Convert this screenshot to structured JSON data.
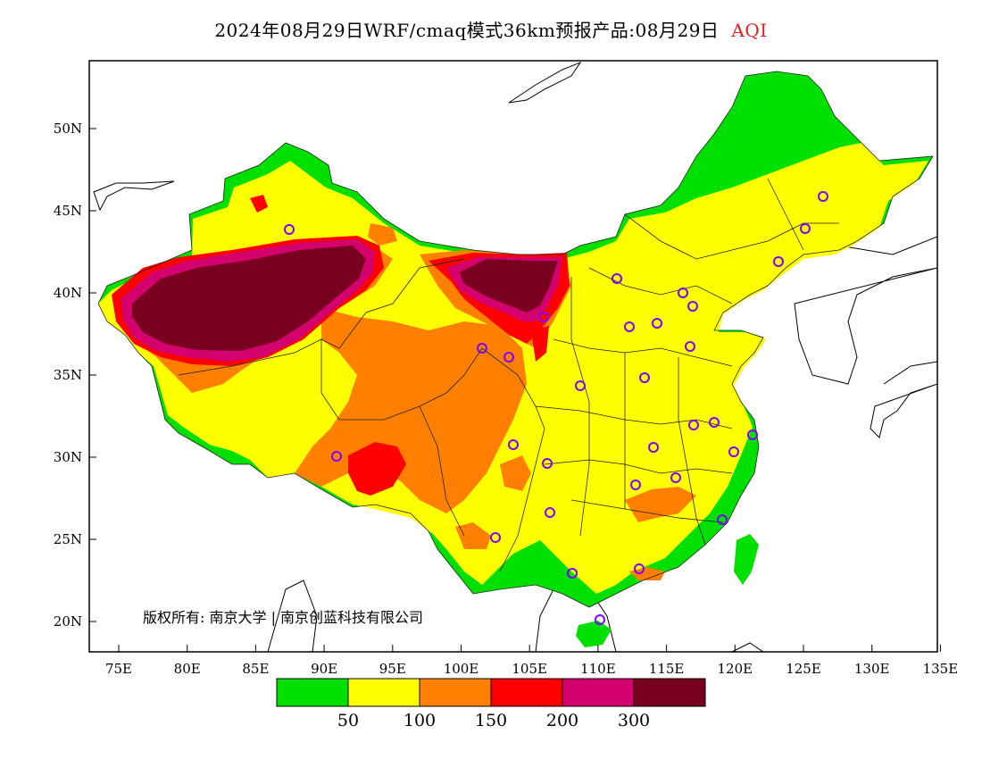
{
  "title": {
    "main": "2024年08月29日WRF/cmaq模式36km预报产品:08月29日",
    "variable": "AQI"
  },
  "axes": {
    "x_ticks": [
      "75E",
      "80E",
      "85E",
      "90E",
      "95E",
      "100E",
      "105E",
      "110E",
      "115E",
      "120E",
      "125E",
      "130E",
      "135E"
    ],
    "y_ticks": [
      "50N",
      "45N",
      "40N",
      "35N",
      "30N",
      "25N",
      "20N"
    ]
  },
  "colorbar": {
    "colors": [
      "#00e000",
      "#ffff00",
      "#ff8000",
      "#ff0000",
      "#d4006e",
      "#7a0020"
    ],
    "labels": [
      "50",
      "100",
      "150",
      "200",
      "300"
    ]
  },
  "copyright": "版权所有: 南京大学 | 南京创蓝科技有限公司",
  "colors": {
    "ocean": "#ffffff",
    "station_marker": "#8000ff",
    "title_variable": "#e02020"
  }
}
